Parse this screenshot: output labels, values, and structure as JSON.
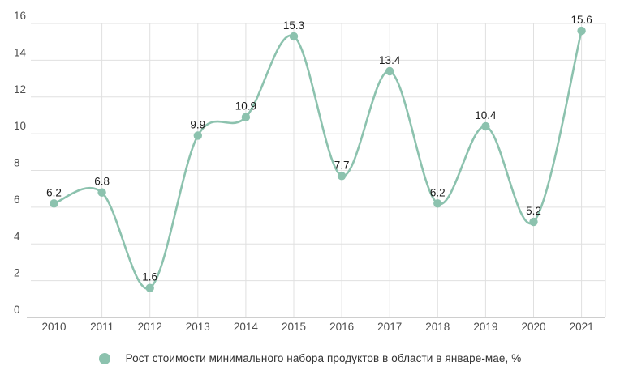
{
  "chart_data": {
    "type": "line",
    "title": "",
    "categories": [
      "2010",
      "2011",
      "2012",
      "2013",
      "2014",
      "2015",
      "2016",
      "2017",
      "2018",
      "2019",
      "2020",
      "2021"
    ],
    "series": [
      {
        "name": "Рост стоимости минимального набора продуктов в области в январе-мае, %",
        "values": [
          6.2,
          6.8,
          1.6,
          9.9,
          10.9,
          15.3,
          7.7,
          13.4,
          6.2,
          10.4,
          5.2,
          15.6
        ]
      }
    ],
    "data_labels": [
      "6.2",
      "6.8",
      "1.6",
      "9.9",
      "10.9",
      "15.3",
      "7.7",
      "13.4",
      "6.2",
      "10.4",
      "5.2",
      "15.6"
    ],
    "yticks": [
      0,
      2,
      4,
      6,
      8,
      10,
      12,
      14,
      16
    ],
    "ylim": [
      0,
      16
    ],
    "xlabel": "",
    "ylabel": "",
    "grid": true,
    "curve": "smooth",
    "legend_position": "bottom",
    "legend_label": "Рост стоимости минимального набора продуктов в области в январе-мае, %",
    "colors": {
      "line": "#8cc2ae",
      "marker": "#8cc2ae",
      "grid": "#e0e0e0",
      "axis_line": "#9e9e9e",
      "tick_label": "#4d4d4d",
      "data_label": "#1c1c1c",
      "background": "#ffffff"
    }
  }
}
